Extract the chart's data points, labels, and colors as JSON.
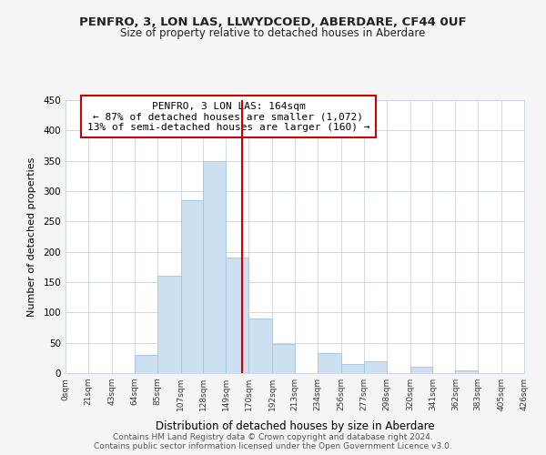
{
  "title": "PENFRO, 3, LON LAS, LLWYDCOED, ABERDARE, CF44 0UF",
  "subtitle": "Size of property relative to detached houses in Aberdare",
  "xlabel": "Distribution of detached houses by size in Aberdare",
  "ylabel": "Number of detached properties",
  "bar_edges": [
    0,
    21,
    43,
    64,
    85,
    107,
    128,
    149,
    170,
    192,
    213,
    234,
    256,
    277,
    298,
    320,
    341,
    362,
    383,
    405,
    426
  ],
  "bar_heights": [
    0,
    0,
    0,
    30,
    160,
    285,
    350,
    190,
    90,
    48,
    0,
    33,
    15,
    20,
    0,
    10,
    0,
    5,
    0,
    0,
    3
  ],
  "bar_color": "#cde0f0",
  "bar_edgecolor": "#a8c8e8",
  "vline_x": 164,
  "vline_color": "#cc0000",
  "annotation_title": "PENFRO, 3 LON LAS: 164sqm",
  "annotation_line1": "← 87% of detached houses are smaller (1,072)",
  "annotation_line2": "13% of semi-detached houses are larger (160) →",
  "annotation_box_facecolor": "#ffffff",
  "annotation_box_edgecolor": "#cc0000",
  "ylim": [
    0,
    450
  ],
  "tick_labels": [
    "0sqm",
    "21sqm",
    "43sqm",
    "64sqm",
    "85sqm",
    "107sqm",
    "128sqm",
    "149sqm",
    "170sqm",
    "192sqm",
    "213sqm",
    "234sqm",
    "256sqm",
    "277sqm",
    "298sqm",
    "320sqm",
    "341sqm",
    "362sqm",
    "383sqm",
    "405sqm",
    "426sqm"
  ],
  "footer1": "Contains HM Land Registry data © Crown copyright and database right 2024.",
  "footer2": "Contains public sector information licensed under the Open Government Licence v3.0.",
  "bg_color": "#f5f5f5",
  "plot_bg_color": "#ffffff",
  "grid_color": "#d0d8e8",
  "title_fontsize": 9.5,
  "subtitle_fontsize": 8.5
}
